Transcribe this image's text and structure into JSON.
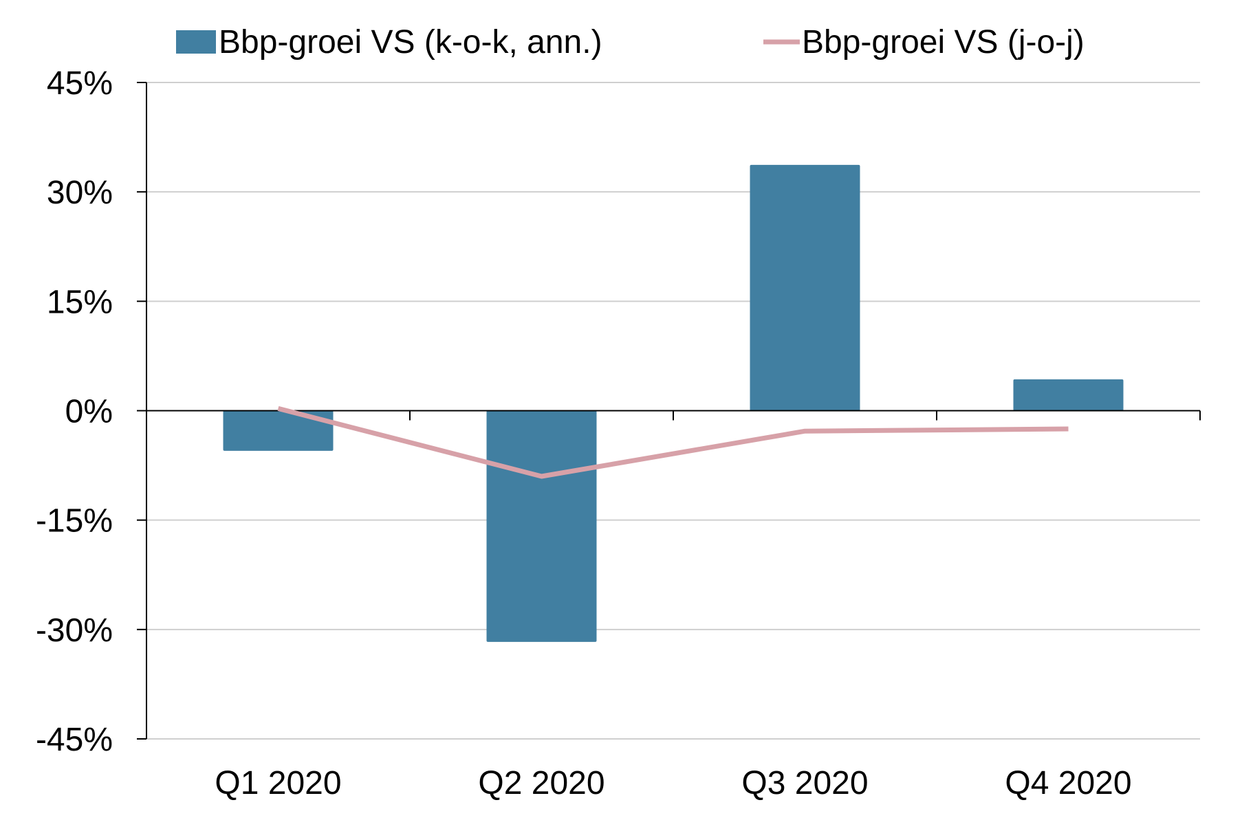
{
  "chart_data": {
    "type": "bar",
    "title": "",
    "xlabel": "",
    "ylabel": "",
    "categories": [
      "Q1 2020",
      "Q2 2020",
      "Q3 2020",
      "Q4 2020"
    ],
    "series": [
      {
        "name": "Bbp-groei VS (k-o-k, ann.)",
        "type": "bar",
        "color": "#417fa1",
        "values": [
          -5.5,
          -31.7,
          33.7,
          4.3
        ]
      },
      {
        "name": "Bbp-groei VS (j-o-j)",
        "type": "line",
        "color": "#d7a1a8",
        "values": [
          0.3,
          -9.0,
          -2.8,
          -2.5
        ]
      }
    ],
    "ylim": [
      -45,
      45
    ],
    "yticks": [
      45,
      30,
      15,
      0,
      -15,
      -30,
      -45
    ],
    "ytick_labels": [
      "45%",
      "30%",
      "15%",
      "0%",
      "-15%",
      "-30%",
      "-45%"
    ],
    "grid": true,
    "legend_position": "top"
  }
}
